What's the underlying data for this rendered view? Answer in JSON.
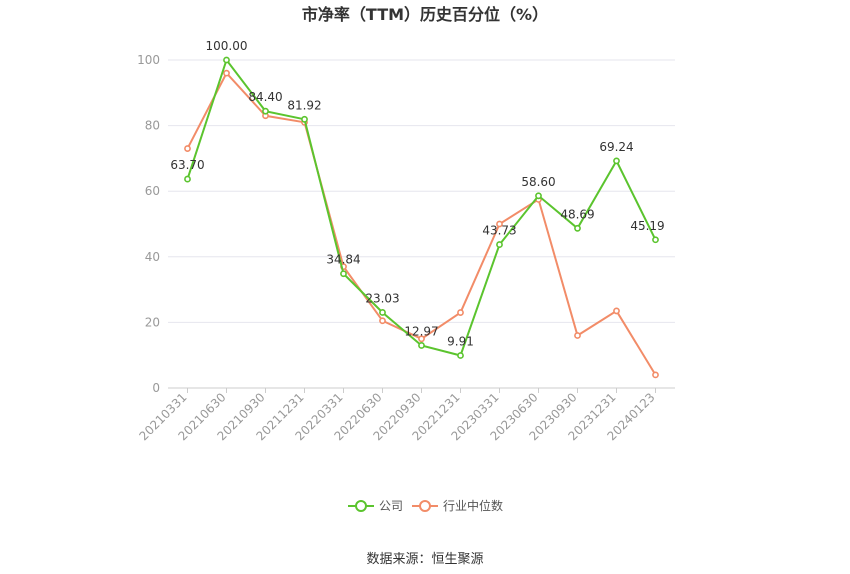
{
  "chart_data": {
    "type": "line",
    "title": "市净率（TTM）历史百分位（%）",
    "categories": [
      "20210331",
      "20210630",
      "20210930",
      "20211231",
      "20220331",
      "20220630",
      "20220930",
      "20221231",
      "20230331",
      "20230630",
      "20230930",
      "20231231",
      "20240123"
    ],
    "series": [
      {
        "name": "公司",
        "color": "#5bc42e",
        "values": [
          63.7,
          100.0,
          84.4,
          81.92,
          34.84,
          23.03,
          12.97,
          9.91,
          43.73,
          58.6,
          48.69,
          69.24,
          45.19
        ],
        "labels": [
          "63.70",
          "100.00",
          "84.40",
          "81.92",
          "34.84",
          "23.03",
          "12.97",
          "9.91",
          "43.73",
          "58.60",
          "48.69",
          "69.24",
          "45.19"
        ]
      },
      {
        "name": "行业中位数",
        "color": "#f28c68",
        "values": [
          73,
          96,
          83,
          81,
          37,
          20.5,
          15,
          23,
          50,
          57.5,
          16,
          23.5,
          4
        ]
      }
    ],
    "yticks": [
      "0",
      "20",
      "40",
      "60",
      "80",
      "100"
    ],
    "ylim": [
      0,
      100
    ],
    "grid": true,
    "legend_position": "bottom-center"
  },
  "source_text": "数据来源：恒生聚源"
}
